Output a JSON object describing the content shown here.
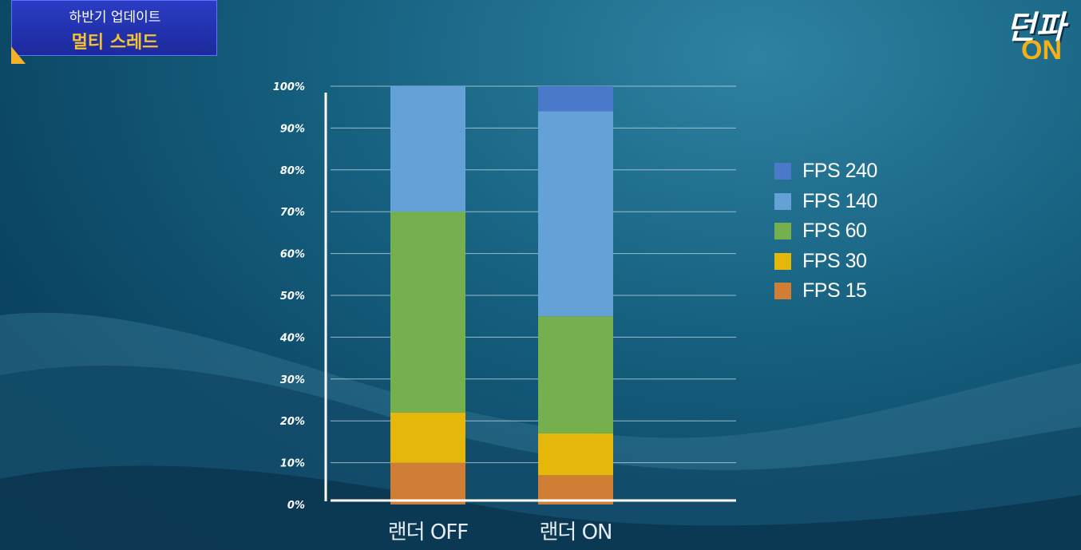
{
  "badge": {
    "line1": "하반기 업데이트",
    "line2": "멀티 스레드"
  },
  "logo": {
    "script_text": "던파",
    "on_text": "ON"
  },
  "colors": {
    "FPS 240": "#4a79c9",
    "FPS 140": "#64a1d6",
    "FPS 60": "#76b04e",
    "FPS 30": "#e5b70b",
    "FPS 15": "#d07d36"
  },
  "chart_data": {
    "type": "bar",
    "stacked": true,
    "categories": [
      "랜더 OFF",
      "랜더 ON"
    ],
    "series": [
      {
        "name": "FPS 15",
        "values": [
          10,
          7
        ]
      },
      {
        "name": "FPS 30",
        "values": [
          12,
          10
        ]
      },
      {
        "name": "FPS 60",
        "values": [
          48,
          28
        ]
      },
      {
        "name": "FPS 140",
        "values": [
          30,
          49
        ]
      },
      {
        "name": "FPS 240",
        "values": [
          0,
          6
        ]
      }
    ],
    "y_ticks": [
      "0%",
      "10%",
      "20%",
      "30%",
      "40%",
      "50%",
      "60%",
      "70%",
      "80%",
      "90%",
      "100%"
    ],
    "ylim": [
      0,
      100
    ],
    "grid": true,
    "legend_order": [
      "FPS 240",
      "FPS 140",
      "FPS 60",
      "FPS 30",
      "FPS 15"
    ],
    "legend_position": "right"
  }
}
